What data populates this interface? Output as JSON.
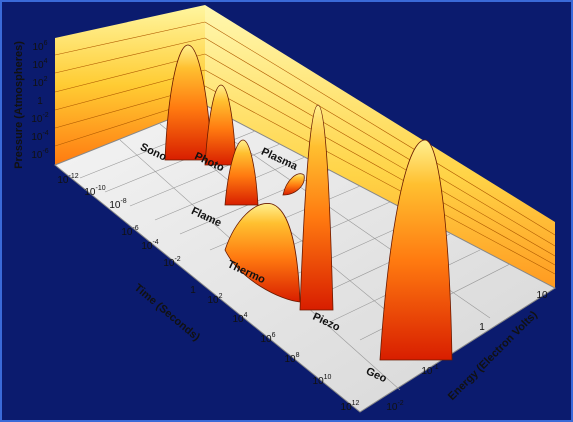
{
  "pressure_axis": {
    "label": "Pressure (Atmospheres)",
    "ticks": [
      {
        "base": "10",
        "exp": "6"
      },
      {
        "base": "10",
        "exp": "4"
      },
      {
        "base": "10",
        "exp": "2"
      },
      {
        "base": "1",
        "exp": ""
      },
      {
        "base": "10",
        "exp": "-2"
      },
      {
        "base": "10",
        "exp": "-4"
      },
      {
        "base": "10",
        "exp": "-6"
      }
    ]
  },
  "time_axis": {
    "label": "Time (Seconds)",
    "ticks": [
      {
        "base": "10",
        "exp": "-12"
      },
      {
        "base": "10",
        "exp": "-10"
      },
      {
        "base": "10",
        "exp": "-8"
      },
      {
        "base": "10",
        "exp": "-6"
      },
      {
        "base": "10",
        "exp": "-4"
      },
      {
        "base": "10",
        "exp": "-2"
      },
      {
        "base": "1",
        "exp": ""
      },
      {
        "base": "10",
        "exp": "2"
      },
      {
        "base": "10",
        "exp": "4"
      },
      {
        "base": "10",
        "exp": "6"
      },
      {
        "base": "10",
        "exp": "8"
      },
      {
        "base": "10",
        "exp": "10"
      },
      {
        "base": "10",
        "exp": "12"
      }
    ]
  },
  "energy_axis": {
    "label": "Energy (Electron Volts)",
    "ticks": [
      {
        "base": "10",
        "exp": "-2"
      },
      {
        "base": "10",
        "exp": "-1"
      },
      {
        "base": "1",
        "exp": ""
      },
      {
        "base": "10",
        "exp": ""
      }
    ]
  },
  "regions": [
    "Sono",
    "Photo",
    "Plasma",
    "Flame",
    "Thermo",
    "Piezo",
    "Geo"
  ]
}
